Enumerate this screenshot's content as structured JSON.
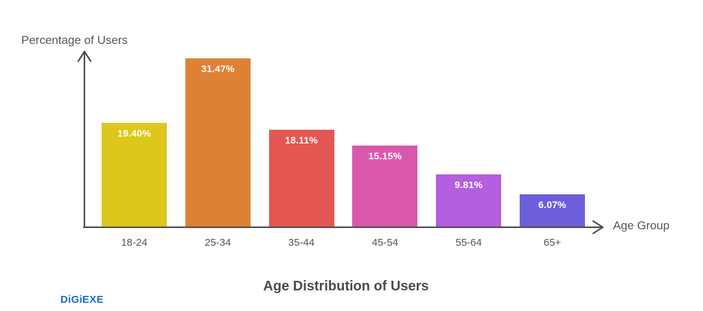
{
  "chart": {
    "y_axis_label": "Percentage of Users",
    "x_axis_label": "Age Group",
    "title": "Age Distribution of Users"
  },
  "chart_data": {
    "type": "bar",
    "title": "Age Distribution of Users",
    "xlabel": "Age Group",
    "ylabel": "Percentage of Users",
    "categories": [
      "18-24",
      "25-34",
      "35-44",
      "45-54",
      "55-64",
      "65+"
    ],
    "values": [
      19.4,
      31.47,
      18.11,
      15.15,
      9.81,
      6.07
    ],
    "value_labels": [
      "19.40%",
      "31.47%",
      "18.11%",
      "15.15%",
      "9.81%",
      "6.07%"
    ],
    "bar_colors": [
      "#ddc71c",
      "#dd8234",
      "#e45752",
      "#da58ab",
      "#b35fe0",
      "#6c5fd9"
    ],
    "value_label_color": "#ffffff",
    "axis_color": "#4a4a4a",
    "ylim": [
      0,
      33.2
    ],
    "grid": false,
    "legend": false
  },
  "footer": {
    "logo_text": "DiGiEXE",
    "logo_color": "#1568d8"
  }
}
